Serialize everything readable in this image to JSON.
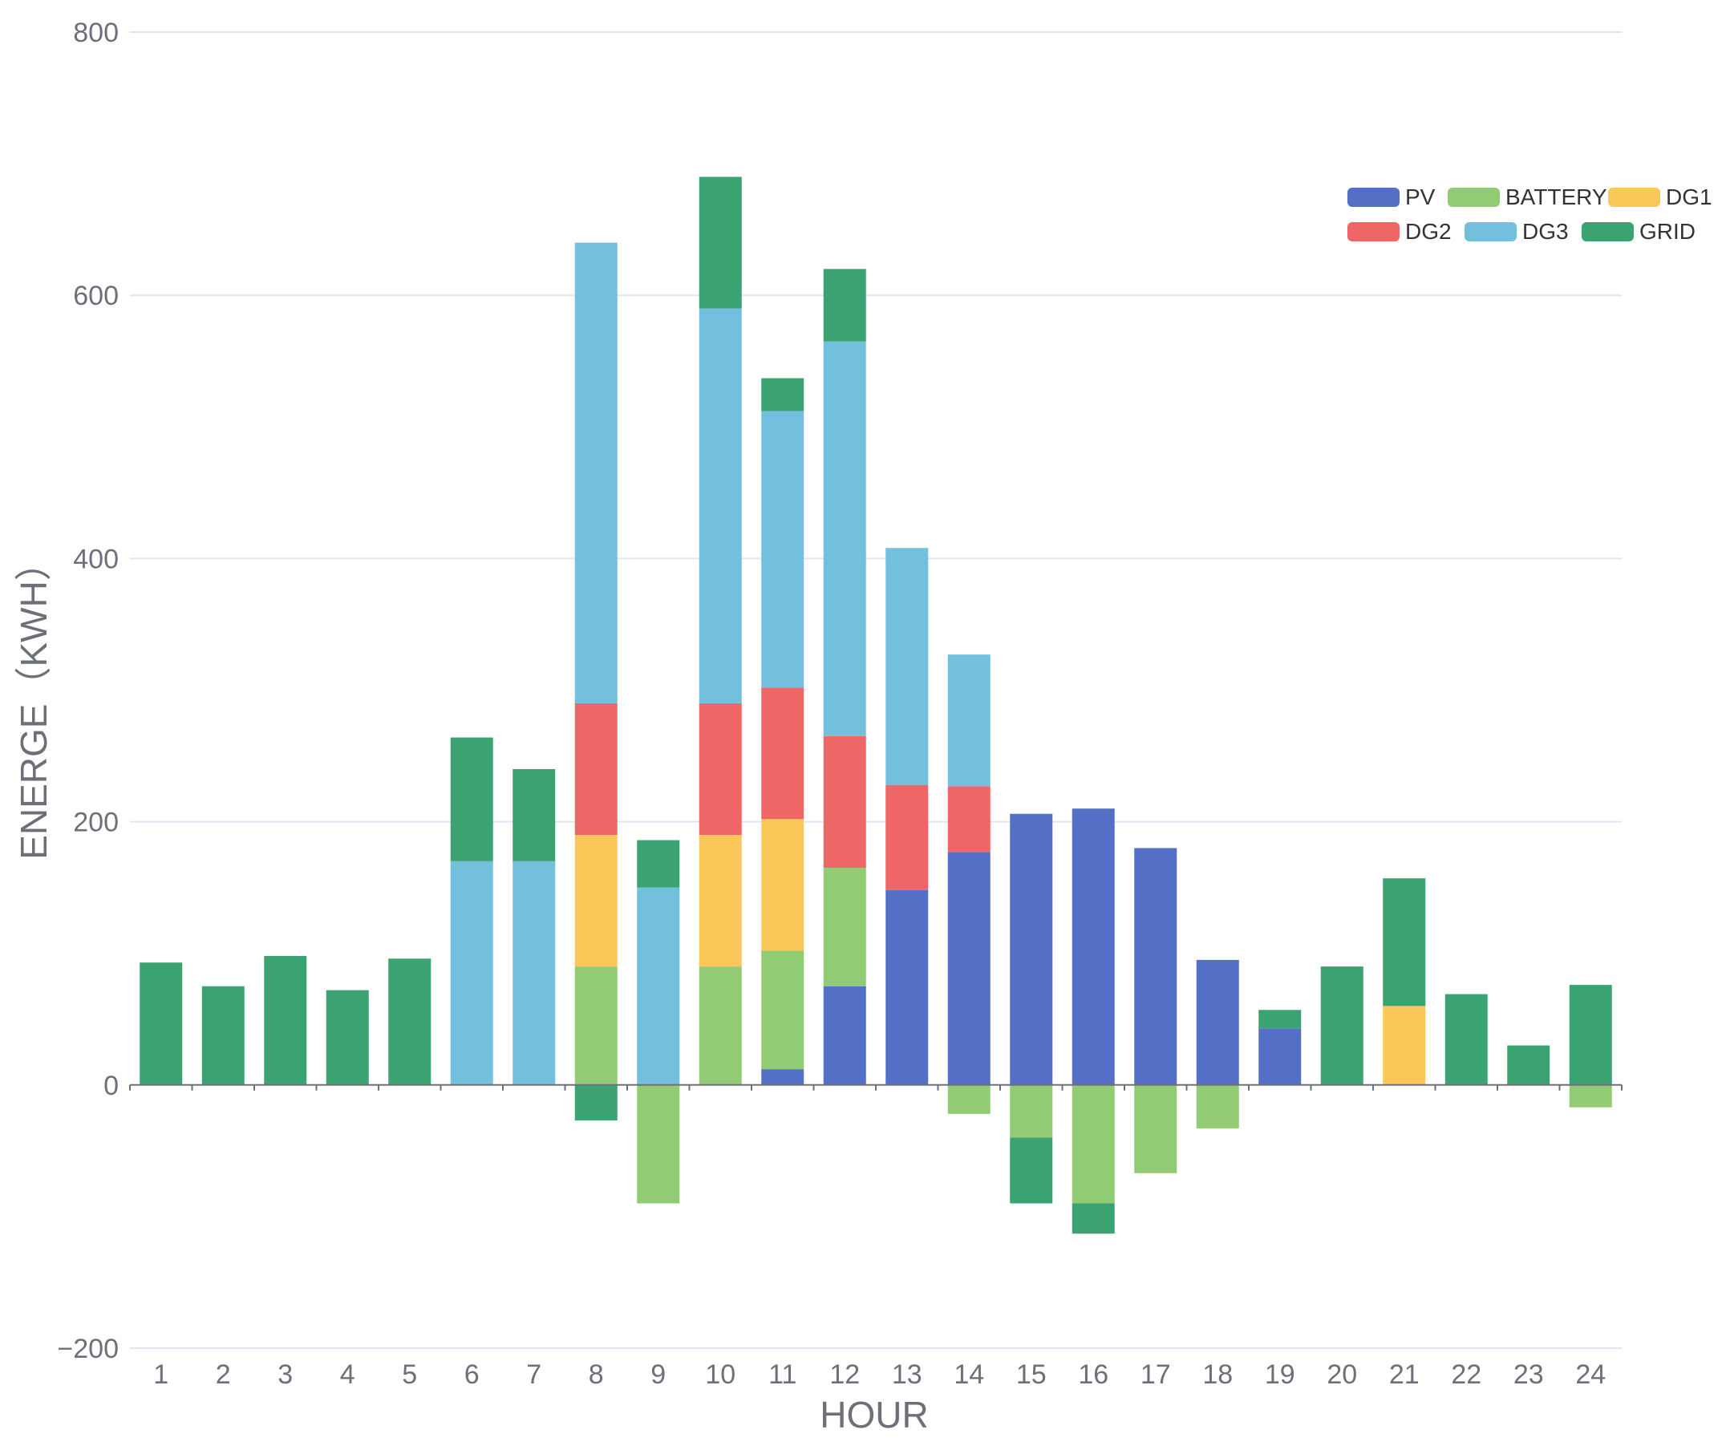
{
  "chart_data": {
    "type": "bar",
    "stacked": true,
    "title": "",
    "xlabel": "HOUR",
    "ylabel": "ENERGE（KWH）",
    "ylim": [
      -200,
      800
    ],
    "yticks": [
      -200,
      0,
      200,
      400,
      600,
      800
    ],
    "ytick_labels": [
      "−200",
      "0",
      "200",
      "400",
      "600",
      "800"
    ],
    "grid": true,
    "legend_position": "top-right",
    "categories": [
      "1",
      "2",
      "3",
      "4",
      "5",
      "6",
      "7",
      "8",
      "9",
      "10",
      "11",
      "12",
      "13",
      "14",
      "15",
      "16",
      "17",
      "18",
      "19",
      "20",
      "21",
      "22",
      "23",
      "24"
    ],
    "series": [
      {
        "name": "PV",
        "color": "#5470c6",
        "values": [
          0,
          0,
          0,
          0,
          0,
          0,
          0,
          0,
          0,
          0,
          12,
          75,
          148,
          177,
          206,
          210,
          180,
          95,
          43,
          0,
          0,
          0,
          0,
          0
        ]
      },
      {
        "name": "BATTERY",
        "color": "#91cc75",
        "values": [
          0,
          0,
          0,
          0,
          0,
          0,
          0,
          90,
          -90,
          90,
          90,
          90,
          0,
          -22,
          -40,
          -90,
          -67,
          -33,
          0,
          0,
          0,
          0,
          0,
          -17
        ]
      },
      {
        "name": "DG1",
        "color": "#fac858",
        "values": [
          0,
          0,
          0,
          0,
          0,
          0,
          0,
          100,
          0,
          100,
          100,
          0,
          0,
          0,
          0,
          0,
          0,
          0,
          0,
          0,
          60,
          0,
          0,
          0
        ]
      },
      {
        "name": "DG2",
        "color": "#ee6666",
        "values": [
          0,
          0,
          0,
          0,
          0,
          0,
          0,
          100,
          0,
          100,
          100,
          100,
          80,
          50,
          0,
          0,
          0,
          0,
          0,
          0,
          0,
          0,
          0,
          0
        ]
      },
      {
        "name": "DG3",
        "color": "#73c0de",
        "values": [
          0,
          0,
          0,
          0,
          0,
          170,
          170,
          350,
          150,
          300,
          210,
          300,
          180,
          100,
          0,
          0,
          0,
          0,
          0,
          0,
          0,
          0,
          0,
          0
        ]
      },
      {
        "name": "GRID",
        "color": "#3ba272",
        "values": [
          93,
          75,
          98,
          72,
          96,
          94,
          70,
          -27,
          36,
          100,
          25,
          55,
          0,
          0,
          -50,
          -23,
          0,
          0,
          14,
          90,
          97,
          69,
          30,
          76
        ]
      }
    ]
  }
}
